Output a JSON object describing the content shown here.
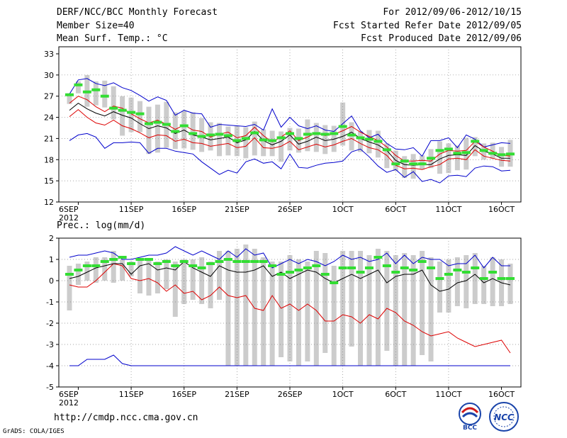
{
  "header": {
    "title": "DERF/NCC/BCC Monthly Forecast",
    "member_size": "Member Size=40",
    "variable": "Mean Surf. Temp.: °C",
    "period": "For 2012/09/06-2012/10/15",
    "started": "Fcst Started Refer Date 2012/09/05",
    "produced": "Fcst Produced Date 2012/09/06"
  },
  "footer": {
    "url": "http://cmdp.ncc.cma.gov.cn",
    "credit": "GrADS: COLA/IGES"
  },
  "logos": {
    "bcc_label": "BCC",
    "ncc_label": "NCC"
  },
  "colors": {
    "max": "#0000cc",
    "min": "#dd0000",
    "mean": "#000000",
    "mid": "#33dd33",
    "box": "#cccccc"
  },
  "chart_data": [
    {
      "type": "box",
      "title": "Mean Surf. Temp.: °C",
      "x_ticks": [
        "6SEP",
        "11SEP",
        "16SEP",
        "21SEP",
        "26SEP",
        "1OCT",
        "6OCT",
        "11OCT",
        "16OCT"
      ],
      "x_year": "2012",
      "ylim": [
        12,
        34
      ],
      "y_ticks": [
        "12",
        "15",
        "18",
        "21",
        "24",
        "27",
        "30",
        "33"
      ],
      "series": {
        "max": [
          20.7,
          21.5,
          21.7,
          21.2,
          19.6,
          20.4,
          20.4,
          20.5,
          20.4,
          18.9,
          19.6,
          19.6,
          19.2,
          19.0,
          18.8,
          17.7,
          16.8,
          15.9,
          16.5,
          16.1,
          17.7,
          18.1,
          17.5,
          17.7,
          16.7,
          18.8,
          16.9,
          16.8,
          17.2,
          17.5,
          17.6,
          17.8,
          19.1,
          19.5,
          18.4,
          17.1,
          16.2,
          16.6,
          15.5,
          16.3,
          14.9,
          15.2,
          14.7,
          15.7,
          15.8,
          15.6,
          16.8,
          17.1,
          17.0,
          16.4,
          16.5
        ],
        "max_up": [
          27.3,
          29.3,
          29.5,
          28.8,
          28.5,
          28.9,
          28.2,
          27.8,
          27.1,
          26.3,
          26.9,
          26.4,
          24.3,
          25.0,
          24.6,
          24.5,
          22.6,
          23.0,
          22.9,
          22.8,
          22.7,
          23.0,
          22.2,
          25.2,
          22.6,
          24.0,
          22.8,
          22.4,
          22.8,
          22.2,
          22.0,
          23.1,
          24.2,
          22.1,
          21.1,
          21.6,
          20.3,
          19.5,
          19.4,
          19.7,
          18.5,
          20.7,
          20.7,
          21.1,
          19.7,
          21.5,
          20.9,
          19.8,
          20.1,
          20.4,
          20.3
        ],
        "mean": [
          25.0,
          26.0,
          25.2,
          24.6,
          24.2,
          24.8,
          24.3,
          23.9,
          23.1,
          22.4,
          22.8,
          22.5,
          21.7,
          22.2,
          21.5,
          21.2,
          20.8,
          21.0,
          21.2,
          20.4,
          20.8,
          22.0,
          20.7,
          20.1,
          20.6,
          21.5,
          20.2,
          20.6,
          21.2,
          20.7,
          20.9,
          21.3,
          21.9,
          21.0,
          20.5,
          20.1,
          19.3,
          17.9,
          17.3,
          17.2,
          17.3,
          17.3,
          18.1,
          18.6,
          18.7,
          18.6,
          20.0,
          19.2,
          18.8,
          18.2,
          18.2
        ],
        "upper": [
          26.0,
          27.0,
          26.5,
          25.5,
          24.8,
          25.6,
          25.3,
          24.5,
          23.8,
          23.2,
          23.6,
          23.0,
          22.3,
          22.9,
          22.2,
          22.0,
          21.2,
          21.6,
          21.9,
          21.1,
          21.4,
          22.6,
          21.4,
          20.5,
          21.2,
          22.1,
          20.7,
          21.2,
          21.8,
          21.4,
          21.6,
          22.1,
          22.7,
          21.9,
          21.3,
          20.7,
          19.8,
          18.6,
          17.8,
          17.8,
          17.9,
          17.8,
          18.8,
          19.3,
          19.2,
          19.3,
          20.6,
          19.8,
          19.2,
          18.6,
          18.5
        ],
        "lower": [
          24.1,
          25.1,
          24.0,
          23.2,
          22.9,
          23.6,
          22.8,
          22.4,
          21.8,
          21.1,
          21.5,
          21.4,
          20.6,
          20.9,
          20.4,
          20.3,
          19.9,
          20.1,
          20.3,
          19.7,
          19.9,
          21.1,
          19.7,
          19.6,
          19.9,
          20.6,
          19.4,
          19.8,
          20.2,
          19.8,
          20.1,
          20.6,
          21.0,
          20.3,
          19.7,
          19.4,
          18.6,
          17.2,
          16.7,
          16.8,
          16.6,
          17.0,
          17.3,
          18.1,
          18.2,
          18.0,
          19.4,
          18.5,
          18.2,
          17.9,
          17.8
        ],
        "mid": [
          27.2,
          28.6,
          27.6,
          27.9,
          27.0,
          25.3,
          25.0,
          24.7,
          24.5,
          23.1,
          23.3,
          23.0,
          22.0,
          22.8,
          21.7,
          21.3,
          21.5,
          21.6,
          21.4,
          20.7,
          21.0,
          21.8,
          20.8,
          20.7,
          21.1,
          21.7,
          21.0,
          21.6,
          21.7,
          21.6,
          21.7,
          22.7,
          21.5,
          21.1,
          20.9,
          20.6,
          19.4,
          17.4,
          17.8,
          17.4,
          17.4,
          18.2,
          19.3,
          19.5,
          18.9,
          19.0,
          20.6,
          19.3,
          18.9,
          18.7,
          18.8
        ],
        "box_top": [
          27.4,
          29.1,
          30.0,
          29.1,
          29.2,
          28.4,
          27.0,
          26.8,
          26.3,
          25.5,
          25.8,
          26.2,
          24.7,
          24.9,
          24.7,
          23.9,
          23.3,
          23.2,
          22.7,
          22.8,
          22.6,
          23.4,
          22.3,
          22.1,
          22.0,
          22.5,
          22.4,
          23.7,
          23.2,
          22.9,
          22.8,
          26.1,
          23.3,
          22.0,
          22.2,
          22.1,
          20.3,
          19.3,
          18.5,
          18.8,
          18.6,
          19.5,
          20.6,
          20.3,
          20.0,
          21.1,
          21.2,
          20.3,
          20.4,
          19.8,
          20.8
        ],
        "box_bot": [
          25.9,
          27.4,
          25.5,
          25.7,
          25.4,
          23.7,
          21.4,
          21.9,
          21.9,
          18.8,
          19.0,
          19.7,
          19.5,
          19.6,
          19.4,
          19.1,
          19.3,
          18.5,
          18.6,
          18.5,
          18.2,
          18.6,
          18.5,
          18.5,
          17.7,
          19.3,
          19.0,
          19.2,
          19.1,
          18.8,
          19.1,
          20.0,
          19.3,
          19.1,
          18.9,
          18.3,
          16.8,
          16.4,
          15.4,
          15.3,
          16.6,
          16.8,
          16.0,
          16.1,
          16.5,
          16.6,
          18.5,
          18.0,
          18.1,
          17.0,
          17.0
        ]
      }
    },
    {
      "type": "box",
      "title": "Prec.: log(mm/d)",
      "x_ticks": [
        "6SEP",
        "11SEP",
        "16SEP",
        "21SEP",
        "26SEP",
        "1OCT",
        "6OCT",
        "11OCT",
        "16OCT"
      ],
      "x_year": "2012",
      "ylim": [
        -5,
        2
      ],
      "y_ticks": [
        "-5",
        "-4",
        "-3",
        "-2",
        "-1",
        "0",
        "1",
        "2"
      ],
      "series": {
        "max": [
          1.1,
          1.2,
          1.2,
          1.3,
          1.4,
          1.3,
          1.0,
          1.0,
          1.1,
          1.2,
          1.2,
          1.3,
          1.6,
          1.4,
          1.2,
          1.4,
          1.2,
          1.0,
          1.4,
          1.1,
          1.5,
          1.2,
          1.3,
          0.6,
          0.8,
          1.0,
          0.8,
          1.0,
          0.9,
          0.7,
          0.9,
          1.2,
          1.0,
          1.1,
          0.9,
          1.0,
          1.3,
          0.8,
          1.2,
          0.8,
          1.1,
          1.0,
          1.0,
          0.7,
          0.8,
          0.8,
          1.2,
          0.6,
          1.1,
          0.7,
          0.7
        ],
        "mean": [
          0.1,
          0.2,
          0.4,
          0.6,
          0.7,
          0.8,
          0.8,
          0.3,
          0.7,
          0.8,
          0.5,
          0.6,
          0.5,
          0.9,
          0.6,
          0.4,
          0.2,
          0.7,
          0.5,
          0.4,
          0.4,
          0.5,
          0.7,
          0.2,
          0.4,
          0.1,
          0.3,
          0.5,
          0.4,
          0.1,
          -0.1,
          0.1,
          0.3,
          0.1,
          0.3,
          0.5,
          -0.1,
          0.2,
          0.3,
          0.3,
          0.5,
          -0.2,
          -0.5,
          -0.4,
          -0.1,
          0.0,
          0.3,
          -0.1,
          0.1,
          -0.1,
          -0.2
        ],
        "min": [
          -0.2,
          -0.3,
          -0.3,
          0.0,
          0.4,
          0.8,
          0.7,
          0.1,
          0.0,
          0.1,
          -0.1,
          -0.5,
          -0.2,
          -0.6,
          -0.5,
          -0.9,
          -0.7,
          -0.3,
          -0.7,
          -0.8,
          -0.7,
          -1.3,
          -1.4,
          -0.7,
          -1.3,
          -1.1,
          -1.4,
          -1.1,
          -1.4,
          -1.9,
          -1.9,
          -1.6,
          -1.7,
          -2.0,
          -1.6,
          -1.8,
          -1.3,
          -1.5,
          -1.9,
          -2.1,
          -2.4,
          -2.6,
          -2.5,
          -2.4,
          -2.7,
          -2.9,
          -3.1,
          -3.0,
          -2.9,
          -2.8,
          -3.4
        ],
        "floor": [
          -4.0,
          -4.0,
          -3.7,
          -3.7,
          -3.7,
          -3.5,
          -3.9,
          -4.0,
          -4.0,
          -4.0,
          -4.0,
          -4.0,
          -4.0,
          -4.0,
          -4.0,
          -4.0,
          -4.0,
          -4.0,
          -4.0,
          -4.0,
          -4.0,
          -4.0,
          -4.0,
          -4.0,
          -4.0,
          -4.0,
          -4.0,
          -4.0,
          -4.0,
          -4.0,
          -4.0,
          -4.0,
          -4.0,
          -4.0,
          -4.0,
          -4.0,
          -4.0,
          -4.0,
          -4.0,
          -4.0,
          -4.0,
          -4.0,
          -4.0,
          -4.0,
          -4.0,
          -4.0,
          -4.0,
          -4.0,
          -4.0,
          -4.0,
          -4.0
        ],
        "mid": [
          0.3,
          0.5,
          0.7,
          0.7,
          0.9,
          1.0,
          1.1,
          0.8,
          1.0,
          1.0,
          0.8,
          0.9,
          0.7,
          0.9,
          0.7,
          0.6,
          0.8,
          0.9,
          1.0,
          0.9,
          0.9,
          0.9,
          0.9,
          0.7,
          0.3,
          0.4,
          0.5,
          0.6,
          0.7,
          0.3,
          -0.1,
          0.6,
          0.6,
          0.4,
          0.6,
          1.1,
          0.7,
          0.4,
          0.6,
          0.5,
          0.9,
          0.6,
          0.1,
          0.3,
          0.5,
          0.4,
          0.6,
          0.1,
          0.4,
          0.1,
          0.1
        ],
        "box_top": [
          0.7,
          0.8,
          0.9,
          1.1,
          1.1,
          1.4,
          1.0,
          0.9,
          1.0,
          1.0,
          0.9,
          1.0,
          0.9,
          1.0,
          1.0,
          1.1,
          0.9,
          1.4,
          1.4,
          1.5,
          1.7,
          1.5,
          1.1,
          0.9,
          0.9,
          1.2,
          1.0,
          0.9,
          1.4,
          1.3,
          0.7,
          1.4,
          1.4,
          1.4,
          1.2,
          1.5,
          1.4,
          1.2,
          1.3,
          1.2,
          1.4,
          1.1,
          0.9,
          1.0,
          1.1,
          1.2,
          1.3,
          0.7,
          1.1,
          1.0,
          0.8
        ],
        "box_bot": [
          -1.4,
          -0.2,
          0.0,
          -0.1,
          0.0,
          -0.1,
          0.0,
          0.2,
          -0.6,
          -0.7,
          -0.6,
          -0.4,
          -1.7,
          -1.1,
          -0.9,
          -1.1,
          -1.3,
          -0.9,
          -4.0,
          -4.0,
          -4.0,
          -4.0,
          -4.0,
          -4.0,
          -3.6,
          -3.8,
          -4.0,
          -3.8,
          -4.0,
          -3.4,
          -4.0,
          -4.0,
          -3.1,
          -4.0,
          -4.0,
          -4.0,
          -3.3,
          -4.0,
          -4.0,
          -4.0,
          -3.5,
          -3.8,
          -1.5,
          -1.5,
          -1.2,
          -1.3,
          -1.1,
          -1.1,
          -1.2,
          -1.2,
          -1.1
        ]
      }
    }
  ]
}
